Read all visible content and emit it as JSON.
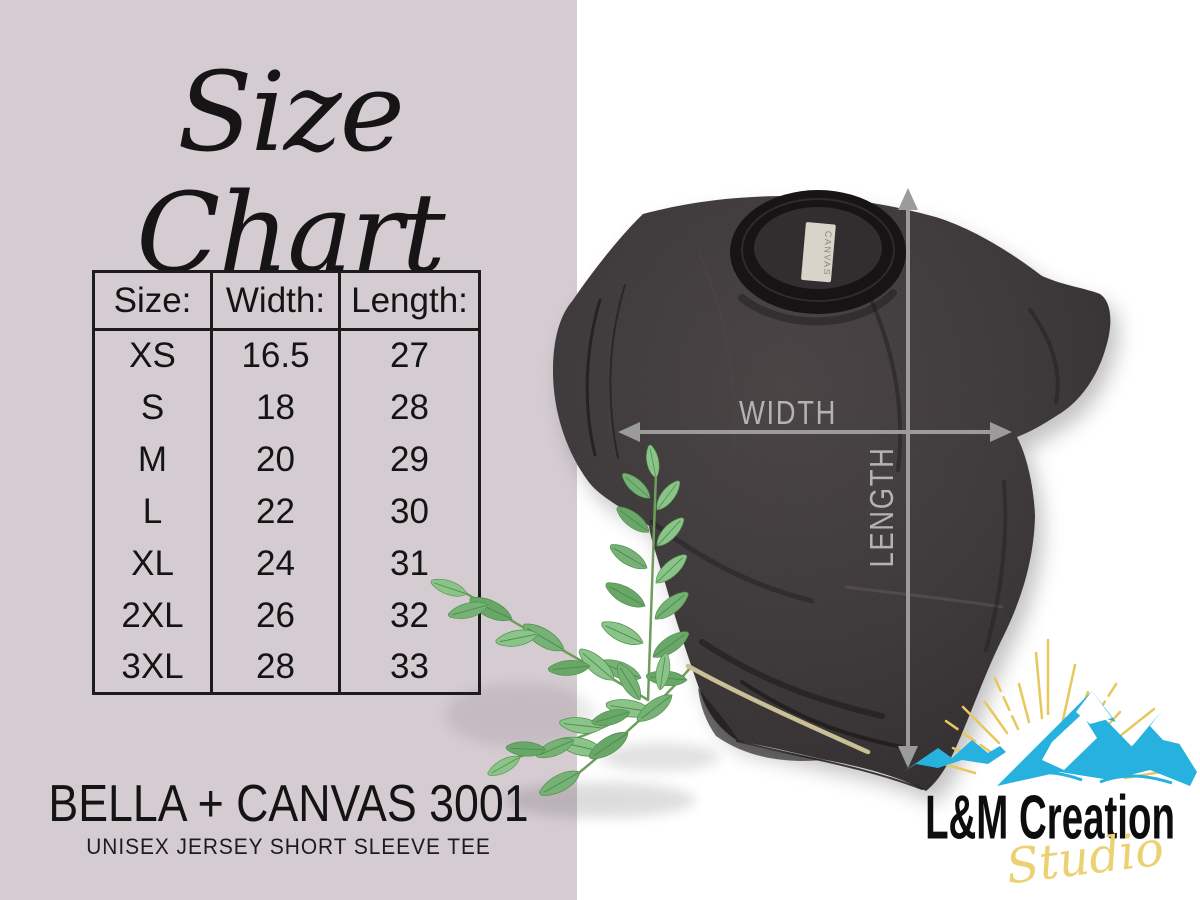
{
  "chart_data": {
    "type": "table",
    "title": "Size Chart",
    "headers": [
      "Size:",
      "Width:",
      "Length:"
    ],
    "rows": [
      [
        "XS",
        "16.5",
        "27"
      ],
      [
        "S",
        "18",
        "28"
      ],
      [
        "M",
        "20",
        "29"
      ],
      [
        "L",
        "22",
        "30"
      ],
      [
        "XL",
        "24",
        "31"
      ],
      [
        "2XL",
        "26",
        "32"
      ],
      [
        "3XL",
        "28",
        "33"
      ]
    ]
  },
  "panel": {
    "brand_line": "BELLA + CANVAS 3001",
    "brand_subline": "UNISEX JERSEY SHORT SLEEVE TEE"
  },
  "shirt": {
    "width_label": "WIDTH",
    "length_label": "LENGTH",
    "neck_tag_text": "CANVAS"
  },
  "logo": {
    "title": "L&M Creation",
    "subtitle": "Studio"
  },
  "colors": {
    "panel_bg": "#d5ccd2",
    "shirt_dark": "#34302f",
    "arrow_gray": "#9b9b9b",
    "leaf_green": "#74b173",
    "mountain_blue": "#27b1de",
    "ray_yellow": "#e6c85d",
    "studio_yellow": "#ecd173",
    "text_black": "#141414"
  }
}
